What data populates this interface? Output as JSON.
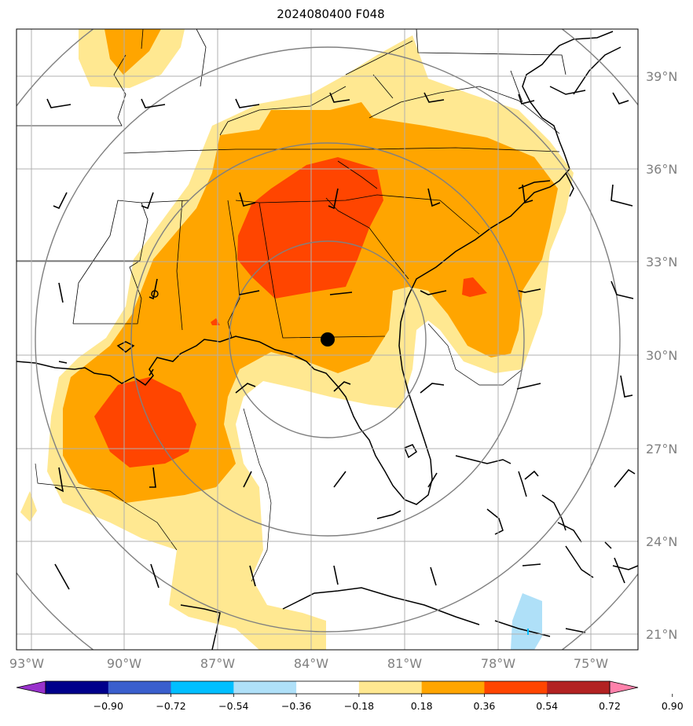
{
  "title": "2024080400 F048",
  "latitude_labels": [
    "39°N",
    "36°N",
    "33°N",
    "30°N",
    "27°N",
    "24°N",
    "21°N"
  ],
  "longitude_labels": [
    "93°W",
    "90°W",
    "87°W",
    "84°W",
    "81°W",
    "78°W",
    "75°W"
  ],
  "colorbar": {
    "tick_labels": [
      "−0.90",
      "−0.72",
      "−0.54",
      "−0.36",
      "−0.18",
      "0.18",
      "0.36",
      "0.54",
      "0.72",
      "0.90"
    ],
    "colors": [
      "#9932cc",
      "#00008b",
      "#3a5fcd",
      "#00bfff",
      "#afe0f8",
      "#ffffff",
      "#ffe891",
      "#ffa500",
      "#ff4500",
      "#b22222",
      "#ff82ab"
    ]
  },
  "legend_colors": {
    "level_018_036": "#ffe891",
    "level_036_054": "#ffa500",
    "level_054_072": "#ff4500",
    "level_neg_036_018": "#afe0f8"
  },
  "center_marker": {
    "label": "center-point",
    "lat": 30.5,
    "lon": -83.4
  }
}
